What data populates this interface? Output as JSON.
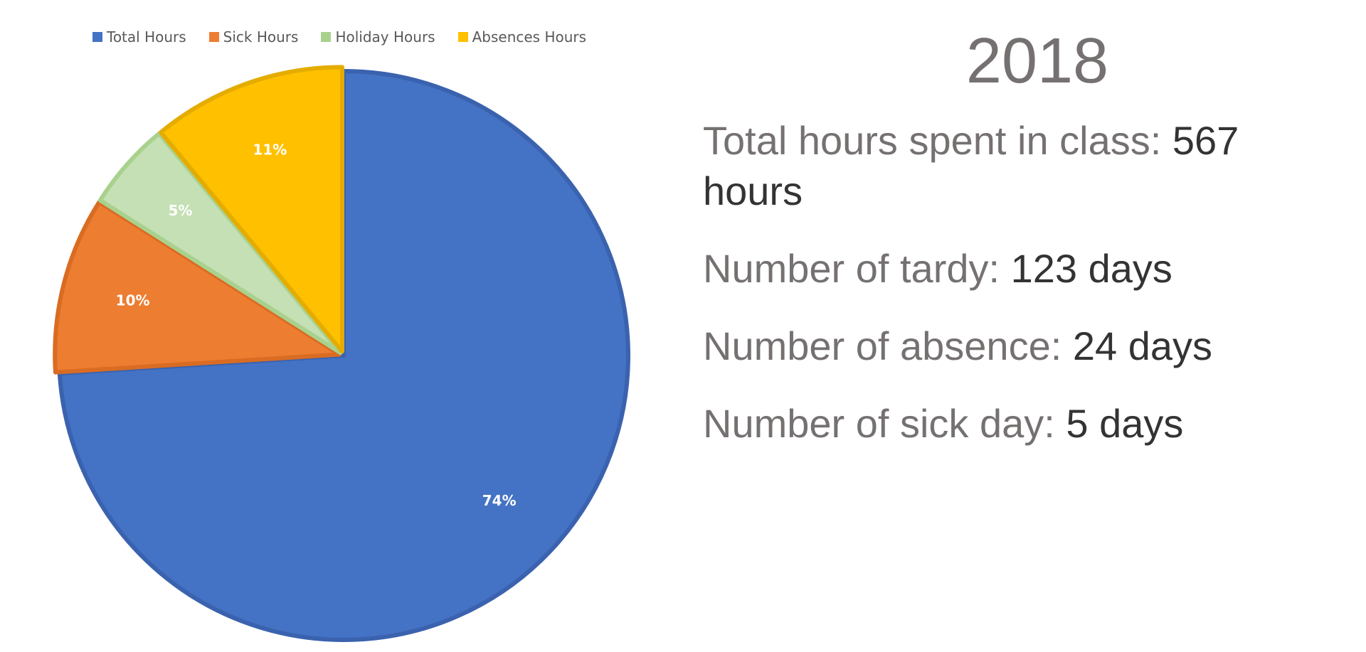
{
  "colors": {
    "total": "#4472C4",
    "sick": "#ED7D31",
    "holiday": "#C5E0B4",
    "absences": "#FFC000",
    "total_border": "#3A62AE",
    "sick_border": "#D96C22",
    "holiday_border": "#A9D18E",
    "absences_border": "#E5AC00"
  },
  "chart_data": {
    "type": "pie",
    "legend_position": "top",
    "categories": [
      "Total Hours",
      "Sick Hours",
      "Holiday Hours",
      "Absences Hours"
    ],
    "values": [
      74,
      10,
      5,
      11
    ],
    "data_labels": [
      "74%",
      "10%",
      "5%",
      "11%"
    ],
    "exploded": [
      false,
      true,
      true,
      true
    ]
  },
  "info": {
    "year": "2018",
    "stats": [
      {
        "label": "Total hours spent in class: ",
        "value": "567 hours"
      },
      {
        "label": "Number of tardy: ",
        "value": "123 days"
      },
      {
        "label": "Number of absence: ",
        "value": "24 days"
      },
      {
        "label": "Number of sick day: ",
        "value": "5 days"
      }
    ]
  }
}
